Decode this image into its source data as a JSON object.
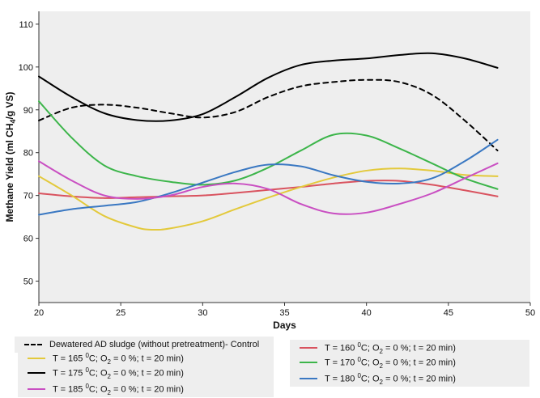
{
  "chart_data": {
    "type": "line",
    "title": "",
    "xlabel": "Days",
    "ylabel": "Methane Yield (ml CH4/g VS)",
    "ylabel_parts": [
      "Methane Yield (ml CH",
      "4",
      "/g VS)"
    ],
    "xlim": [
      20,
      50
    ],
    "ylim": [
      45,
      113
    ],
    "x_ticks": [
      20,
      25,
      30,
      35,
      40,
      45,
      50
    ],
    "y_ticks": [
      50,
      60,
      70,
      80,
      90,
      100,
      110
    ],
    "grid": false,
    "legend_position": "bottom",
    "series": [
      {
        "name": "Dewatered AD sludge (without pretreatment)- Control",
        "color": "#000000",
        "dash": true,
        "x": [
          20,
          22,
          24,
          26,
          28,
          30,
          32,
          34,
          36,
          38,
          40,
          42,
          44,
          46,
          48
        ],
        "y": [
          87.5,
          90.5,
          91.2,
          90.5,
          89.2,
          88.2,
          89.5,
          93.0,
          95.5,
          96.5,
          97.0,
          96.5,
          93.5,
          87.5,
          80.5
        ]
      },
      {
        "name": "T = 160 ⁰C; O₂ = 0 %; t = 20 min",
        "color": "#d9535f",
        "dash": false,
        "x": [
          20,
          22,
          24,
          26,
          28,
          30,
          32,
          34,
          36,
          38,
          40,
          42,
          44,
          46,
          48
        ],
        "y": [
          70.5,
          69.8,
          69.4,
          69.6,
          69.8,
          70.0,
          70.6,
          71.3,
          72.0,
          72.8,
          73.4,
          73.4,
          72.5,
          71.2,
          69.8
        ]
      },
      {
        "name": "T = 165 ⁰C; O₂ = 0 %; t = 20 min",
        "color": "#e3c93b",
        "dash": false,
        "x": [
          20,
          22,
          24,
          26,
          27,
          28,
          30,
          32,
          34,
          36,
          38,
          40,
          42,
          44,
          46,
          48
        ],
        "y": [
          74.5,
          70.0,
          65.2,
          62.5,
          62.0,
          62.3,
          64.0,
          66.8,
          69.5,
          72.0,
          74.2,
          75.8,
          76.3,
          75.8,
          74.8,
          74.5
        ]
      },
      {
        "name": "T = 170 ⁰C; O₂ = 0 %; t = 20 min",
        "color": "#3cb54a",
        "dash": false,
        "x": [
          20,
          22,
          24,
          26,
          28,
          30,
          32,
          34,
          36,
          38,
          40,
          42,
          44,
          46,
          48
        ],
        "y": [
          92.0,
          83.5,
          77.0,
          74.5,
          73.2,
          72.5,
          73.5,
          76.5,
          80.5,
          84.2,
          84.0,
          81.0,
          77.5,
          74.0,
          71.5
        ]
      },
      {
        "name": "T = 175 ⁰C; O₂ = 0 %; t = 20 min",
        "color": "#000000",
        "dash": false,
        "x": [
          20,
          22,
          24,
          26,
          28,
          30,
          32,
          34,
          36,
          38,
          40,
          42,
          44,
          46,
          48
        ],
        "y": [
          97.8,
          93.0,
          89.2,
          87.6,
          87.5,
          89.0,
          93.0,
          97.5,
          100.5,
          101.5,
          102.0,
          102.8,
          103.2,
          102.0,
          99.8
        ]
      },
      {
        "name": "T = 180 ⁰C; O₂ = 0 %; t = 20 min",
        "color": "#3a78c2",
        "dash": false,
        "x": [
          20,
          22,
          24,
          26,
          28,
          30,
          32,
          34,
          36,
          38,
          40,
          42,
          44,
          46,
          48
        ],
        "y": [
          65.5,
          66.8,
          67.6,
          68.5,
          70.5,
          73.0,
          75.5,
          77.2,
          76.8,
          74.7,
          73.2,
          72.8,
          74.0,
          78.0,
          83.0
        ]
      },
      {
        "name": "T = 185 ⁰C; O₂ = 0 %; t = 20 min",
        "color": "#c94fc2",
        "dash": false,
        "x": [
          20,
          22,
          24,
          26,
          28,
          30,
          32,
          34,
          36,
          38,
          40,
          42,
          44,
          46,
          48
        ],
        "y": [
          78.0,
          73.5,
          70.0,
          69.2,
          70.0,
          72.0,
          72.8,
          71.5,
          68.0,
          65.8,
          66.0,
          68.0,
          70.5,
          74.0,
          77.5
        ]
      }
    ],
    "legend": [
      {
        "series": 0,
        "parts": [
          "Dewatered AD sludge (without pretreatment)- Control"
        ]
      },
      {
        "series": 1,
        "parts": [
          "T = 160 ",
          "0",
          "C; O",
          "2",
          " = 0 %; t = 20 min)"
        ]
      },
      {
        "series": 2,
        "parts": [
          "T = 165 ",
          "0",
          "C; O",
          "2",
          " = 0 %; t = 20 min)"
        ]
      },
      {
        "series": 3,
        "parts": [
          "T = 170 ",
          "0",
          "C; O",
          "2",
          " = 0 %; t = 20 min)"
        ]
      },
      {
        "series": 4,
        "parts": [
          "T = 175 ",
          "0",
          "C; O",
          "2",
          " = 0 %; t = 20 min)"
        ]
      },
      {
        "series": 5,
        "parts": [
          "T = 180 ",
          "0",
          "C; O",
          "2",
          " = 0 %; t = 20 min)"
        ]
      },
      {
        "series": 6,
        "parts": [
          "T = 185 ",
          "0",
          "C; O",
          "2",
          " = 0 %; t = 20 min)"
        ]
      }
    ]
  }
}
